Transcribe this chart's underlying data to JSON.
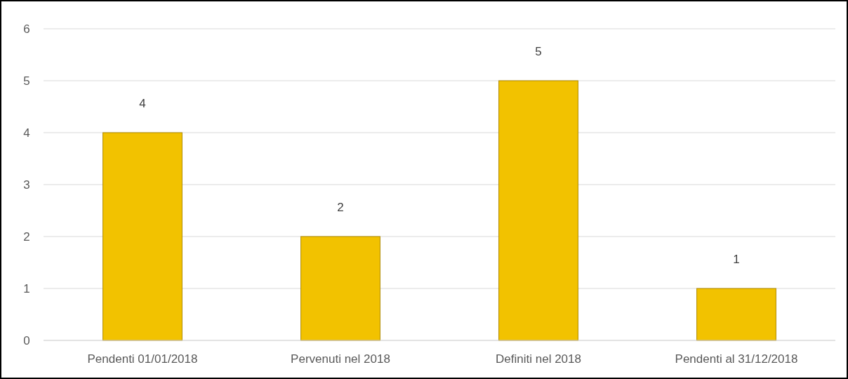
{
  "chart_data": {
    "type": "bar",
    "categories": [
      "Pendenti 01/01/2018",
      "Pervenuti nel 2018",
      "Definiti nel 2018",
      "Pendenti al 31/12/2018"
    ],
    "values": [
      4,
      2,
      5,
      1
    ],
    "color": "#f2c200",
    "ylim": [
      0,
      6
    ],
    "yticks": [
      0,
      1,
      2,
      3,
      4,
      5,
      6
    ],
    "grid": "y",
    "data_labels": true
  }
}
